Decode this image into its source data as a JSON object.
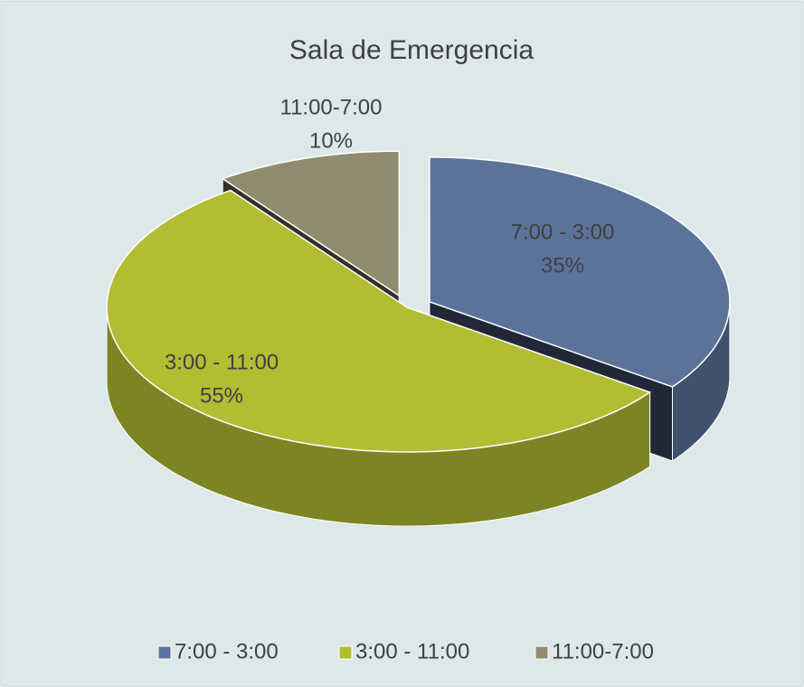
{
  "chart_data": {
    "type": "pie",
    "title": "Sala de Emergencia",
    "categories": [
      "7:00 - 3:00",
      "3:00 - 11:00",
      "11:00-7:00"
    ],
    "values": [
      35,
      55,
      10
    ],
    "value_labels": [
      "35%",
      "55%",
      "10%"
    ],
    "colors": [
      "#5b739b",
      "#b2bd33",
      "#8f8c70"
    ],
    "legend": "bottom"
  }
}
